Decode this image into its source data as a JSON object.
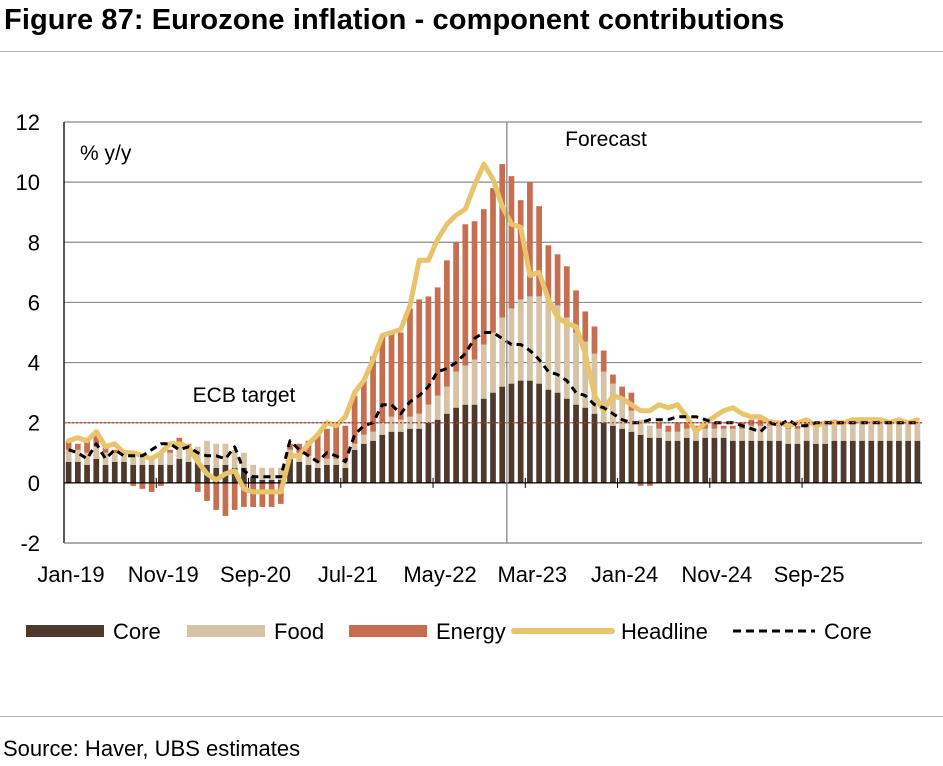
{
  "figure": {
    "title": "Figure 87: Eurozone inflation - component contributions",
    "source": "Source: Haver, UBS estimates"
  },
  "chart_data": {
    "type": "bar",
    "unit_label": "% y/y",
    "stacked": true,
    "x_tick_labels": [
      "Jan-19",
      "Nov-19",
      "Sep-20",
      "Jul-21",
      "May-22",
      "Mar-23",
      "Jan-24",
      "Nov-24",
      "Sep-25"
    ],
    "yticks": [
      -2,
      0,
      2,
      4,
      6,
      8,
      10,
      12
    ],
    "ylim": [
      -2,
      12
    ],
    "grid": true,
    "legend_position": "bottom",
    "annotations": {
      "ecb_target": {
        "label": "ECB target",
        "value": 2
      },
      "forecast": {
        "label": "Forecast",
        "start_period": "Jan-23"
      }
    },
    "colors": {
      "core_bar": "#4e3a2c",
      "food_bar": "#d6c2a4",
      "energy_bar": "#c86e50",
      "headline_line": "#e8c46c",
      "core_line": "#000000",
      "target_line": "#c0392b",
      "grid": "#8c8c8c"
    },
    "start_period": "Jan-19",
    "series": [
      {
        "name": "Core",
        "kind": "bar",
        "values": [
          0.7,
          0.7,
          0.6,
          0.8,
          0.6,
          0.7,
          0.7,
          0.6,
          0.6,
          0.6,
          0.6,
          0.6,
          0.8,
          0.7,
          0.7,
          0.6,
          0.5,
          0.6,
          0.5,
          0.5,
          0.2,
          0.1,
          0.1,
          0.1,
          0.8,
          0.7,
          0.6,
          0.5,
          0.6,
          0.6,
          0.5,
          1.1,
          1.3,
          1.4,
          1.6,
          1.7,
          1.7,
          1.8,
          1.8,
          2.0,
          2.1,
          2.3,
          2.5,
          2.6,
          2.6,
          2.8,
          3.0,
          3.2,
          3.3,
          3.4,
          3.4,
          3.3,
          3.1,
          3.0,
          2.8,
          2.6,
          2.5,
          2.3,
          2.0,
          1.9,
          1.8,
          1.7,
          1.6,
          1.5,
          1.5,
          1.4,
          1.4,
          1.5,
          1.4,
          1.5,
          1.5,
          1.5,
          1.4,
          1.4,
          1.4,
          1.4,
          1.4,
          1.4,
          1.3,
          1.3,
          1.4,
          1.3,
          1.3,
          1.4,
          1.4,
          1.4,
          1.4,
          1.4,
          1.4,
          1.4,
          1.4,
          1.4,
          1.4
        ]
      },
      {
        "name": "Food",
        "kind": "bar",
        "values": [
          0.4,
          0.4,
          0.4,
          0.4,
          0.4,
          0.3,
          0.3,
          0.3,
          0.3,
          0.3,
          0.4,
          0.4,
          0.5,
          0.5,
          0.5,
          0.8,
          0.8,
          0.7,
          0.6,
          0.5,
          0.4,
          0.4,
          0.4,
          0.4,
          0.3,
          0.3,
          0.3,
          0.2,
          0.2,
          0.2,
          0.2,
          0.2,
          0.3,
          0.3,
          0.4,
          0.5,
          0.4,
          0.4,
          0.5,
          0.6,
          0.8,
          0.9,
          1.2,
          1.3,
          1.5,
          1.8,
          2.0,
          2.3,
          2.5,
          2.7,
          2.8,
          2.9,
          3.0,
          2.9,
          2.7,
          2.4,
          2.2,
          2.0,
          1.7,
          1.4,
          1.0,
          0.7,
          0.5,
          0.4,
          0.3,
          0.3,
          0.3,
          0.3,
          0.3,
          0.3,
          0.3,
          0.3,
          0.4,
          0.4,
          0.5,
          0.5,
          0.5,
          0.5,
          0.5,
          0.5,
          0.5,
          0.6,
          0.6,
          0.6,
          0.6,
          0.6,
          0.6,
          0.6,
          0.6,
          0.6,
          0.6,
          0.6,
          0.6
        ]
      },
      {
        "name": "Energy",
        "kind": "bar",
        "values": [
          0.3,
          0.2,
          0.4,
          0.5,
          0.3,
          0.1,
          0.0,
          -0.1,
          -0.2,
          -0.3,
          -0.1,
          0.1,
          0.2,
          0.1,
          -0.3,
          -0.6,
          -0.9,
          -1.1,
          -0.9,
          -0.8,
          -0.8,
          -0.8,
          -0.8,
          -0.7,
          0.2,
          0.3,
          0.5,
          0.9,
          1.0,
          1.2,
          1.2,
          1.6,
          1.8,
          2.5,
          2.9,
          2.8,
          2.9,
          3.6,
          3.8,
          3.6,
          3.6,
          4.2,
          4.3,
          4.7,
          4.6,
          4.5,
          4.8,
          5.1,
          4.4,
          3.3,
          3.8,
          3.0,
          1.8,
          1.7,
          1.7,
          1.4,
          1.0,
          0.9,
          0.7,
          0.3,
          0.4,
          0.6,
          -0.1,
          -0.1,
          0.2,
          0.2,
          0.3,
          0.2,
          0.2,
          0.2,
          0.2,
          0.1,
          0.1,
          0.2,
          0.2,
          0.2,
          0.2,
          0.1,
          0.1,
          0.1,
          0.1,
          0.1,
          0.1,
          0.1,
          0.0,
          0.0,
          0.0,
          0.0,
          0.0,
          0.0,
          0.0,
          0.0,
          0.0
        ]
      },
      {
        "name": "Headline",
        "kind": "line",
        "values": [
          1.4,
          1.5,
          1.4,
          1.7,
          1.2,
          1.3,
          1.0,
          1.0,
          0.9,
          0.8,
          1.0,
          1.3,
          1.3,
          1.2,
          0.7,
          0.3,
          0.1,
          0.3,
          0.4,
          -0.2,
          -0.3,
          -0.3,
          -0.3,
          -0.3,
          0.9,
          0.9,
          1.3,
          1.6,
          2.0,
          1.9,
          2.2,
          3.0,
          3.4,
          4.1,
          4.9,
          5.0,
          5.1,
          5.9,
          7.4,
          7.4,
          8.1,
          8.6,
          8.9,
          9.1,
          9.9,
          10.6,
          10.1,
          9.2,
          8.6,
          8.5,
          6.9,
          7.0,
          6.1,
          5.5,
          5.3,
          5.2,
          4.3,
          2.9,
          2.4,
          2.9,
          2.8,
          2.6,
          2.4,
          2.4,
          2.6,
          2.5,
          2.6,
          2.2,
          1.7,
          2.0,
          2.2,
          2.4,
          2.5,
          2.3,
          2.2,
          2.2,
          2.0,
          2.0,
          1.9,
          2.0,
          2.1,
          1.9,
          2.0,
          2.0,
          2.0,
          2.1,
          2.1,
          2.1,
          2.1,
          2.0,
          2.1,
          2.0,
          2.1
        ]
      },
      {
        "name": "Core",
        "kind": "line",
        "values": [
          1.1,
          1.0,
          0.8,
          1.3,
          0.8,
          1.1,
          0.9,
          0.9,
          0.9,
          1.1,
          1.3,
          1.3,
          1.1,
          1.2,
          1.0,
          0.9,
          0.9,
          0.8,
          1.2,
          0.4,
          0.2,
          0.2,
          0.2,
          0.2,
          1.4,
          1.1,
          0.9,
          0.7,
          1.0,
          0.9,
          0.7,
          1.6,
          1.9,
          2.0,
          2.6,
          2.6,
          2.3,
          2.7,
          2.9,
          3.2,
          3.7,
          3.8,
          4.0,
          4.3,
          4.8,
          5.0,
          5.0,
          4.8,
          4.6,
          4.6,
          4.4,
          4.1,
          3.7,
          3.6,
          3.4,
          3.0,
          2.9,
          2.6,
          2.5,
          2.3,
          2.1,
          2.0,
          2.0,
          2.1,
          2.1,
          2.1,
          2.2,
          2.2,
          2.2,
          2.1,
          2.0,
          2.0,
          2.0,
          1.9,
          1.8,
          1.7,
          2.0,
          1.9,
          2.1,
          1.9,
          1.9,
          2.0,
          2.0,
          2.0,
          2.0,
          2.0,
          2.0,
          2.0,
          2.0,
          2.0,
          2.0,
          2.0,
          2.0
        ]
      }
    ]
  }
}
